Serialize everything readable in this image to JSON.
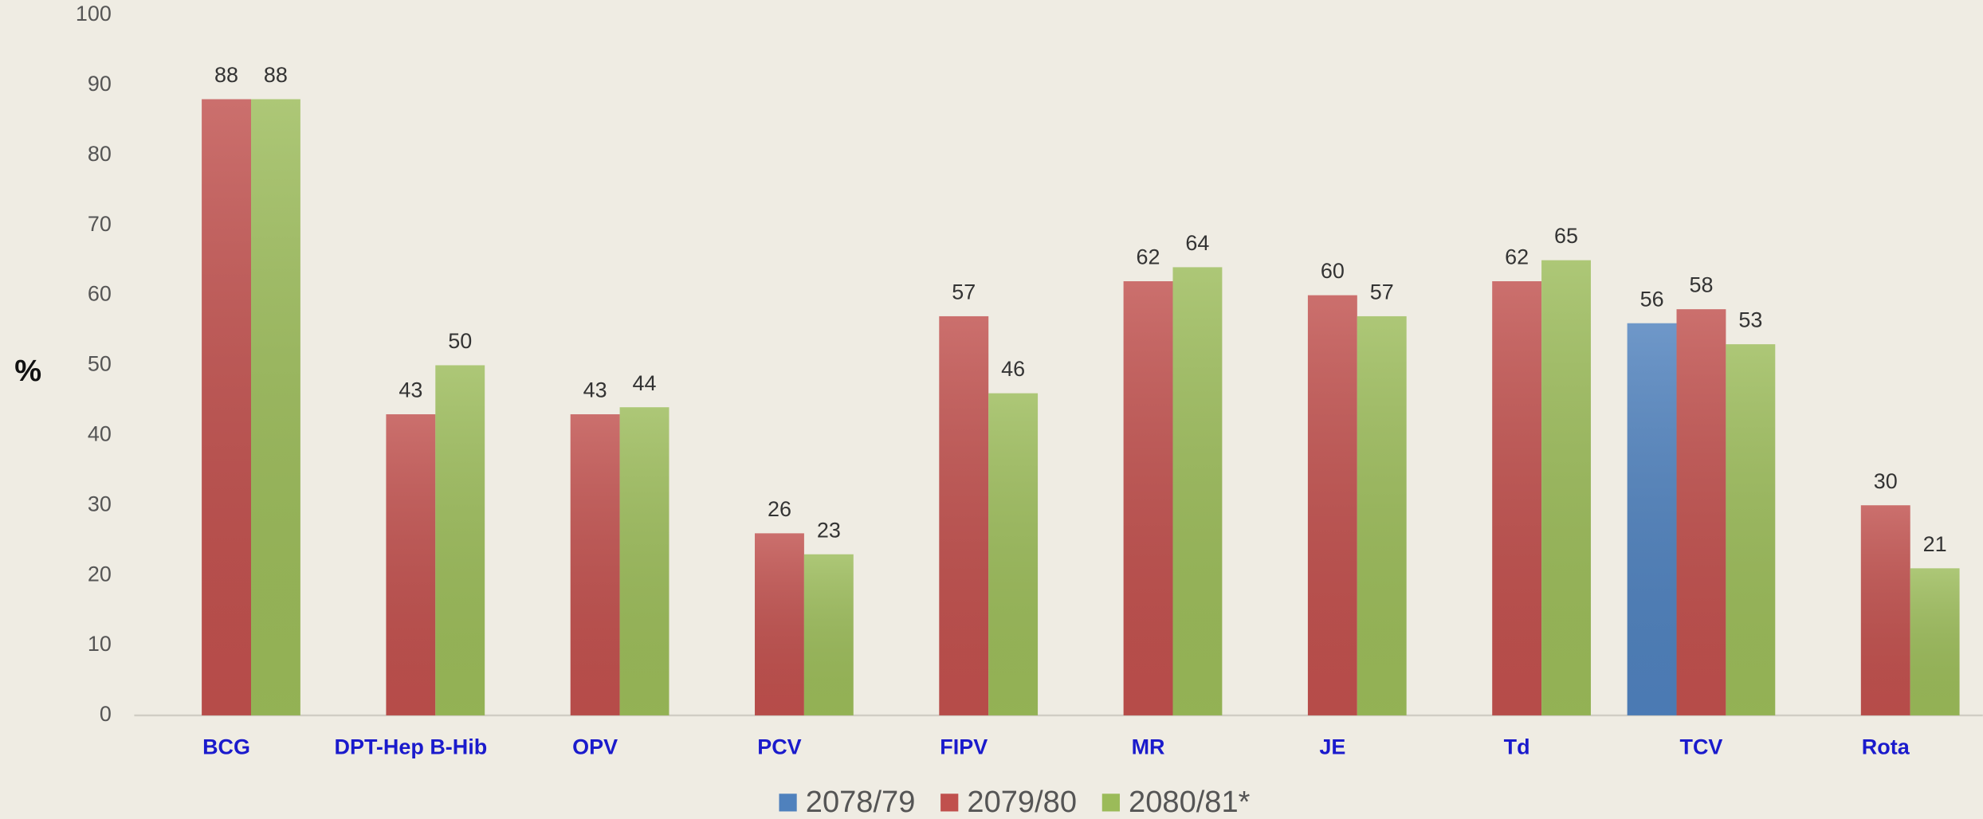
{
  "chart_data": {
    "type": "bar",
    "y_label": "%",
    "categories": [
      "BCG",
      "DPT-Hep B-Hib",
      "OPV",
      "PCV",
      "FIPV",
      "MR",
      "JE",
      "Td",
      "TCV",
      "Rota"
    ],
    "series": [
      {
        "name": "2078/79",
        "color": "#4f81bd",
        "values": [
          null,
          null,
          null,
          null,
          null,
          null,
          null,
          null,
          56,
          null
        ]
      },
      {
        "name": "2079/80",
        "color": "#c0504d",
        "values": [
          88,
          43,
          43,
          26,
          57,
          62,
          60,
          62,
          58,
          30
        ]
      },
      {
        "name": "2080/81*",
        "color": "#9bbb59",
        "values": [
          88,
          50,
          44,
          23,
          46,
          64,
          57,
          65,
          53,
          21
        ]
      }
    ],
    "ylim": [
      0,
      100
    ],
    "yticks": [
      0,
      10,
      20,
      30,
      40,
      50,
      60,
      70,
      80,
      90,
      100
    ],
    "grid": false,
    "legend": "bottom"
  }
}
